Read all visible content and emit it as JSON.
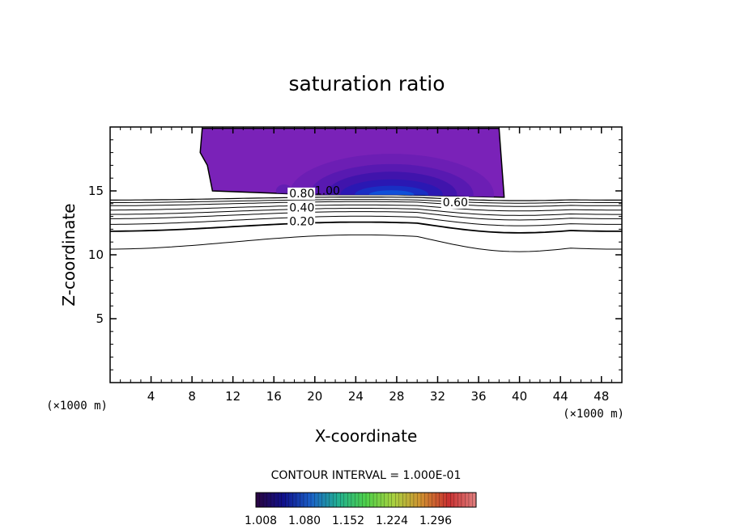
{
  "chart_data": {
    "type": "contour",
    "title": "saturation ratio",
    "xlabel": "X-coordinate",
    "ylabel": "Z-coordinate",
    "x_unit": "(×1000 m)",
    "z_unit": "(×1000 m)",
    "xlim": [
      0,
      50
    ],
    "ylim": [
      0,
      20
    ],
    "x_ticks": [
      4,
      8,
      12,
      16,
      20,
      24,
      28,
      32,
      36,
      40,
      44,
      48
    ],
    "y_ticks": [
      5,
      10,
      15
    ],
    "contour_interval_text": "CONTOUR INTERVAL = 1.000E-01",
    "contour_line_labels": [
      {
        "text": "0.80",
        "x": 17.5,
        "z": 14.5
      },
      {
        "text": "1.00",
        "x": 20.0,
        "z": 14.7
      },
      {
        "text": "0.40",
        "x": 17.5,
        "z": 13.4
      },
      {
        "text": "0.20",
        "x": 17.5,
        "z": 12.3
      },
      {
        "text": "0.60",
        "x": 32.5,
        "z": 13.8
      }
    ],
    "colorbar": {
      "min": 1.008,
      "max": 1.316,
      "tick_labels": [
        "1.008",
        "1.080",
        "1.152",
        "1.224",
        "1.296"
      ],
      "colors": [
        "#2a0540",
        "#10108a",
        "#1a60c8",
        "#22b090",
        "#4fd04a",
        "#a8d040",
        "#d09030",
        "#c83030",
        "#e08080"
      ]
    },
    "supersaturated_region": {
      "fill_color": "#7a22b8",
      "core_color": "#1030c0",
      "boundary": [
        [
          9.0,
          19.9
        ],
        [
          38.0,
          19.9
        ],
        [
          38.5,
          14.5
        ],
        [
          28,
          14.7
        ],
        [
          20,
          14.7
        ],
        [
          10,
          15.0
        ],
        [
          9.5,
          17.0
        ],
        [
          8.8,
          18.0
        ],
        [
          9.0,
          19.9
        ]
      ]
    }
  }
}
